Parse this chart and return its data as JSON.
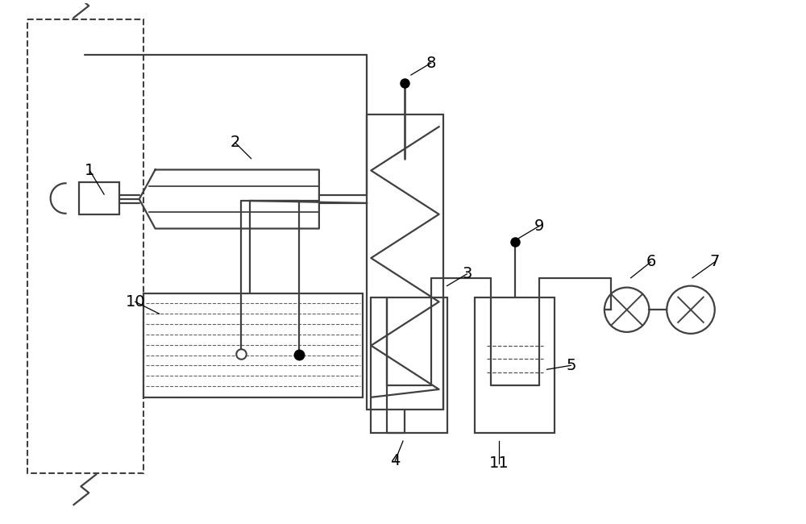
{
  "bg_color": "#ffffff",
  "line_color": "#404040",
  "line_width": 1.6,
  "fig_width": 10.0,
  "fig_height": 6.5,
  "label_fontsize": 14
}
